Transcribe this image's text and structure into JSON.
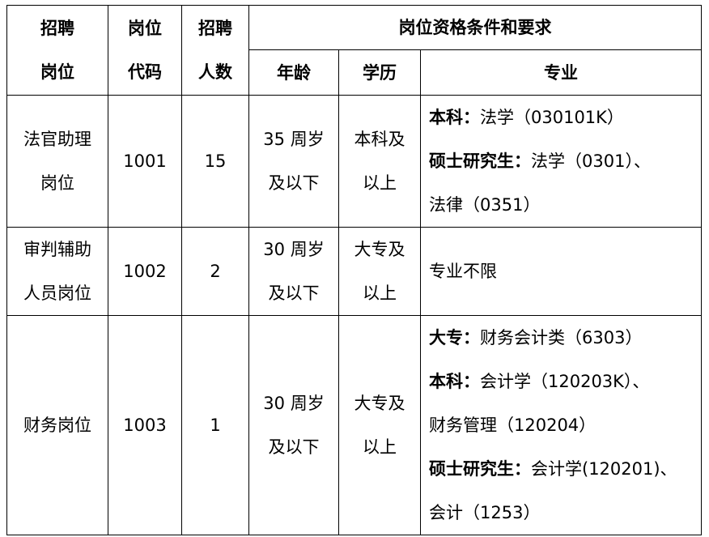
{
  "headers": {
    "position": [
      "招聘",
      "岗位"
    ],
    "code": [
      "岗位",
      "代码"
    ],
    "count": [
      "招聘",
      "人数"
    ],
    "requirements": "岗位资格条件和要求",
    "age": "年龄",
    "education": "学历",
    "major": "专业"
  },
  "rows": [
    {
      "position": [
        "法官助理",
        "岗位"
      ],
      "code": "1001",
      "count": "15",
      "age": [
        "35 周岁",
        "及以下"
      ],
      "education": [
        "本科及",
        "以上"
      ],
      "major": [
        [
          {
            "bold": "本科："
          },
          {
            "text": "法学（030101K）"
          }
        ],
        [
          {
            "bold": "硕士研究生："
          },
          {
            "text": "法学（0301）、"
          }
        ],
        [
          {
            "text": "法律（0351）"
          }
        ]
      ]
    },
    {
      "position": [
        "审判辅助",
        "人员岗位"
      ],
      "code": "1002",
      "count": "2",
      "age": [
        "30 周岁",
        "及以下"
      ],
      "education": [
        "大专及",
        "以上"
      ],
      "major": [
        [
          {
            "text": "专业不限"
          }
        ]
      ]
    },
    {
      "position": [
        "财务岗位"
      ],
      "code": "1003",
      "count": "1",
      "age": [
        "30 周岁",
        "及以下"
      ],
      "education": [
        "大专及",
        "以上"
      ],
      "major": [
        [
          {
            "bold": "大专："
          },
          {
            "text": "财务会计类（6303）"
          }
        ],
        [
          {
            "bold": "本科："
          },
          {
            "text": "会计学（120203K）、"
          }
        ],
        [
          {
            "text": "财务管理（120204）"
          }
        ],
        [
          {
            "bold": "硕士研究生："
          },
          {
            "text": "会计学(120201)、"
          }
        ],
        [
          {
            "text": "会计（1253）"
          }
        ]
      ]
    }
  ]
}
